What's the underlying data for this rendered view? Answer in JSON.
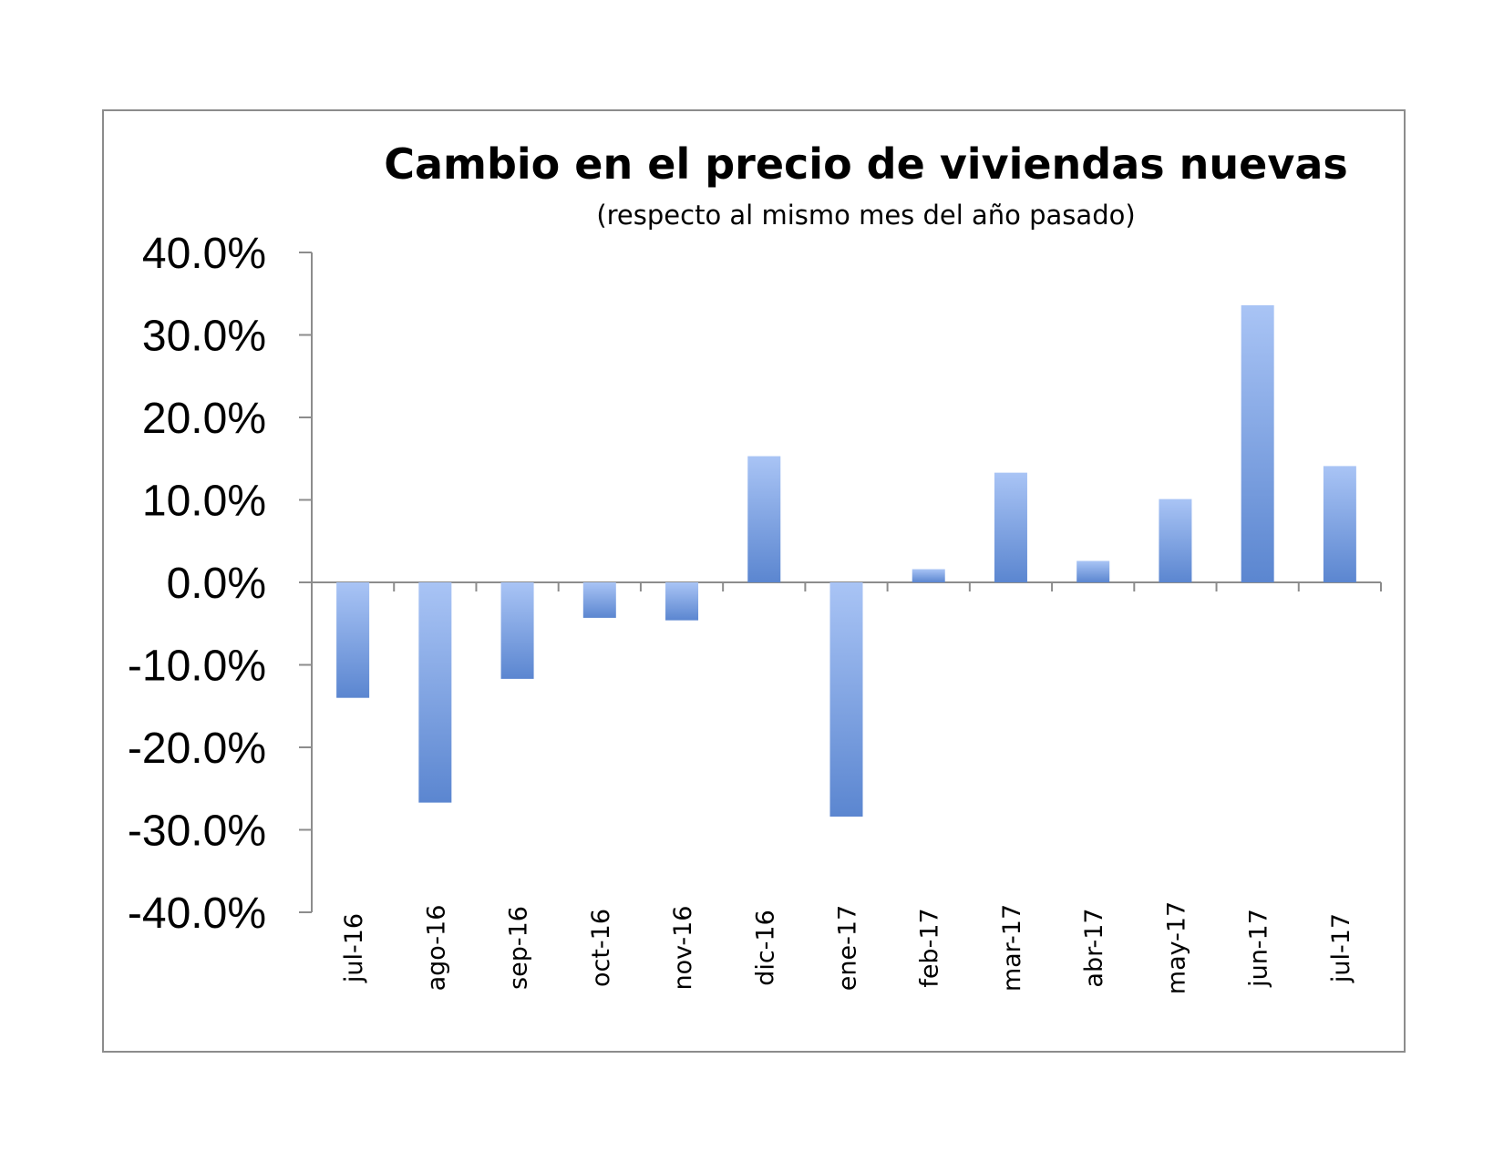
{
  "chart_data": {
    "type": "bar",
    "title": "Cambio en el precio de viviendas nuevas",
    "subtitle": "(respecto al mismo mes del año pasado)",
    "categories": [
      "jul-16",
      "ago-16",
      "sep-16",
      "oct-16",
      "nov-16",
      "dic-16",
      "ene-17",
      "feb-17",
      "mar-17",
      "abr-17",
      "may-17",
      "jun-17",
      "jul-17"
    ],
    "series": [
      {
        "values": [
          -14.0,
          -26.7,
          -11.7,
          -4.3,
          -4.6,
          15.3,
          -28.4,
          1.6,
          13.3,
          2.6,
          10.1,
          33.6,
          14.1
        ]
      }
    ],
    "ylim": [
      -40,
      40
    ],
    "yticks": [
      "40.0%",
      "30.0%",
      "20.0%",
      "10.0%",
      "0.0%",
      "-10.0%",
      "-20.0%",
      "-30.0%",
      "-40.0%"
    ],
    "ytick_values": [
      40,
      30,
      20,
      10,
      0,
      -10,
      -20,
      -30,
      -40
    ],
    "xlabel": "",
    "ylabel": "",
    "grid": false,
    "legend": "none",
    "colors": {
      "bar_light": "#a9c4f5",
      "bar_dark": "#5b86d0",
      "axis": "#8c8c8c"
    }
  }
}
